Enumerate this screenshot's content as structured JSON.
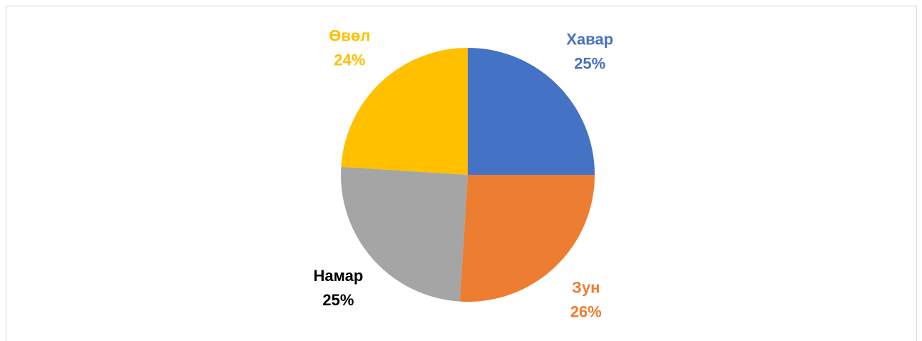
{
  "chart_data": {
    "type": "pie",
    "categories": [
      "Хавар",
      "Зун",
      "Намар",
      "Өвөл"
    ],
    "values": [
      25,
      26,
      25,
      24
    ],
    "value_labels": [
      "25%",
      "26%",
      "25%",
      "24%"
    ],
    "colors": [
      "#4472c4",
      "#ed7d31",
      "#a5a5a5",
      "#ffc000"
    ],
    "label_colors": [
      "#4472c4",
      "#ed7d31",
      "#000000",
      "#ffc000"
    ]
  }
}
